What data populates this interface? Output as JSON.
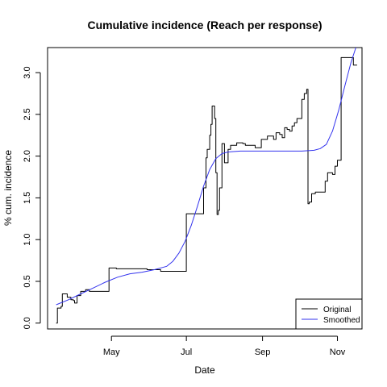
{
  "chart_data": {
    "type": "line",
    "title": "Cumulative incidence (Reach per response)",
    "xlabel": "Date",
    "ylabel": "% cum. incidence",
    "xlim": [
      "2020-03-10",
      "2020-11-21"
    ],
    "ylim": [
      -0.07,
      3.3
    ],
    "x_ticks": [
      {
        "date": "2020-05-01",
        "label": "May"
      },
      {
        "date": "2020-07-01",
        "label": "Jul"
      },
      {
        "date": "2020-09-01",
        "label": "Sep"
      },
      {
        "date": "2020-11-01",
        "label": "Nov"
      }
    ],
    "y_ticks": [
      {
        "value": 0.0,
        "label": "0.0"
      },
      {
        "value": 0.5,
        "label": "0.5"
      },
      {
        "value": 1.0,
        "label": "1.0"
      },
      {
        "value": 1.5,
        "label": "1.5"
      },
      {
        "value": 2.0,
        "label": "2.0"
      },
      {
        "value": 2.5,
        "label": "2.5"
      },
      {
        "value": 3.0,
        "label": "3.0"
      }
    ],
    "grid": false,
    "legend_position": "bottom-right",
    "series": [
      {
        "name": "Original",
        "color": "#000000",
        "style": "step",
        "points": [
          [
            "2020-03-17",
            0.0
          ],
          [
            "2020-03-18",
            0.18
          ],
          [
            "2020-03-21",
            0.2
          ],
          [
            "2020-03-22",
            0.35
          ],
          [
            "2020-03-26",
            0.31
          ],
          [
            "2020-03-29",
            0.28
          ],
          [
            "2020-03-31",
            0.27
          ],
          [
            "2020-04-01",
            0.24
          ],
          [
            "2020-04-03",
            0.33
          ],
          [
            "2020-04-06",
            0.38
          ],
          [
            "2020-04-10",
            0.4
          ],
          [
            "2020-04-13",
            0.38
          ],
          [
            "2020-04-29",
            0.66
          ],
          [
            "2020-05-05",
            0.65
          ],
          [
            "2020-05-30",
            0.64
          ],
          [
            "2020-06-10",
            0.62
          ],
          [
            "2020-07-01",
            1.31
          ],
          [
            "2020-07-15",
            1.62
          ],
          [
            "2020-07-17",
            1.98
          ],
          [
            "2020-07-18",
            2.08
          ],
          [
            "2020-07-20",
            2.25
          ],
          [
            "2020-07-21",
            2.38
          ],
          [
            "2020-07-22",
            2.6
          ],
          [
            "2020-07-24",
            2.45
          ],
          [
            "2020-07-25",
            1.8
          ],
          [
            "2020-07-26",
            1.3
          ],
          [
            "2020-07-27",
            1.35
          ],
          [
            "2020-07-28",
            1.62
          ],
          [
            "2020-07-30",
            2.15
          ],
          [
            "2020-08-01",
            1.92
          ],
          [
            "2020-08-04",
            2.08
          ],
          [
            "2020-08-06",
            2.13
          ],
          [
            "2020-08-11",
            2.16
          ],
          [
            "2020-08-16",
            2.15
          ],
          [
            "2020-08-18",
            2.13
          ],
          [
            "2020-08-26",
            2.1
          ],
          [
            "2020-08-31",
            2.2
          ],
          [
            "2020-09-05",
            2.24
          ],
          [
            "2020-09-10",
            2.2
          ],
          [
            "2020-09-12",
            2.28
          ],
          [
            "2020-09-15",
            2.26
          ],
          [
            "2020-09-17",
            2.22
          ],
          [
            "2020-09-19",
            2.34
          ],
          [
            "2020-09-21",
            2.32
          ],
          [
            "2020-09-23",
            2.3
          ],
          [
            "2020-09-25",
            2.36
          ],
          [
            "2020-09-27",
            2.4
          ],
          [
            "2020-09-29",
            2.45
          ],
          [
            "2020-10-03",
            2.68
          ],
          [
            "2020-10-05",
            2.75
          ],
          [
            "2020-10-07",
            2.8
          ],
          [
            "2020-10-08",
            1.43
          ],
          [
            "2020-10-09",
            1.45
          ],
          [
            "2020-10-11",
            1.55
          ],
          [
            "2020-10-14",
            1.57
          ],
          [
            "2020-10-22",
            1.7
          ],
          [
            "2020-10-24",
            1.8
          ],
          [
            "2020-10-28",
            1.78
          ],
          [
            "2020-10-30",
            1.88
          ],
          [
            "2020-11-01",
            1.95
          ],
          [
            "2020-11-04",
            3.18
          ],
          [
            "2020-11-14",
            3.09
          ],
          [
            "2020-11-17",
            3.09
          ]
        ]
      },
      {
        "name": "Smoothed",
        "color": "#3333ee",
        "style": "line",
        "points": [
          [
            "2020-03-17",
            0.22
          ],
          [
            "2020-03-27",
            0.28
          ],
          [
            "2020-04-06",
            0.35
          ],
          [
            "2020-04-16",
            0.42
          ],
          [
            "2020-04-26",
            0.49
          ],
          [
            "2020-05-06",
            0.55
          ],
          [
            "2020-05-16",
            0.59
          ],
          [
            "2020-05-26",
            0.61
          ],
          [
            "2020-06-05",
            0.64
          ],
          [
            "2020-06-15",
            0.68
          ],
          [
            "2020-06-20",
            0.74
          ],
          [
            "2020-06-25",
            0.84
          ],
          [
            "2020-06-30",
            0.98
          ],
          [
            "2020-07-05",
            1.17
          ],
          [
            "2020-07-10",
            1.4
          ],
          [
            "2020-07-15",
            1.64
          ],
          [
            "2020-07-20",
            1.84
          ],
          [
            "2020-07-25",
            1.97
          ],
          [
            "2020-07-30",
            2.03
          ],
          [
            "2020-08-04",
            2.05
          ],
          [
            "2020-08-14",
            2.06
          ],
          [
            "2020-08-24",
            2.06
          ],
          [
            "2020-09-03",
            2.06
          ],
          [
            "2020-09-13",
            2.06
          ],
          [
            "2020-09-23",
            2.06
          ],
          [
            "2020-10-03",
            2.06
          ],
          [
            "2020-10-13",
            2.07
          ],
          [
            "2020-10-18",
            2.09
          ],
          [
            "2020-10-23",
            2.14
          ],
          [
            "2020-10-28",
            2.3
          ],
          [
            "2020-11-02",
            2.55
          ],
          [
            "2020-11-07",
            2.84
          ],
          [
            "2020-11-12",
            3.12
          ],
          [
            "2020-11-16",
            3.3
          ]
        ]
      }
    ]
  }
}
